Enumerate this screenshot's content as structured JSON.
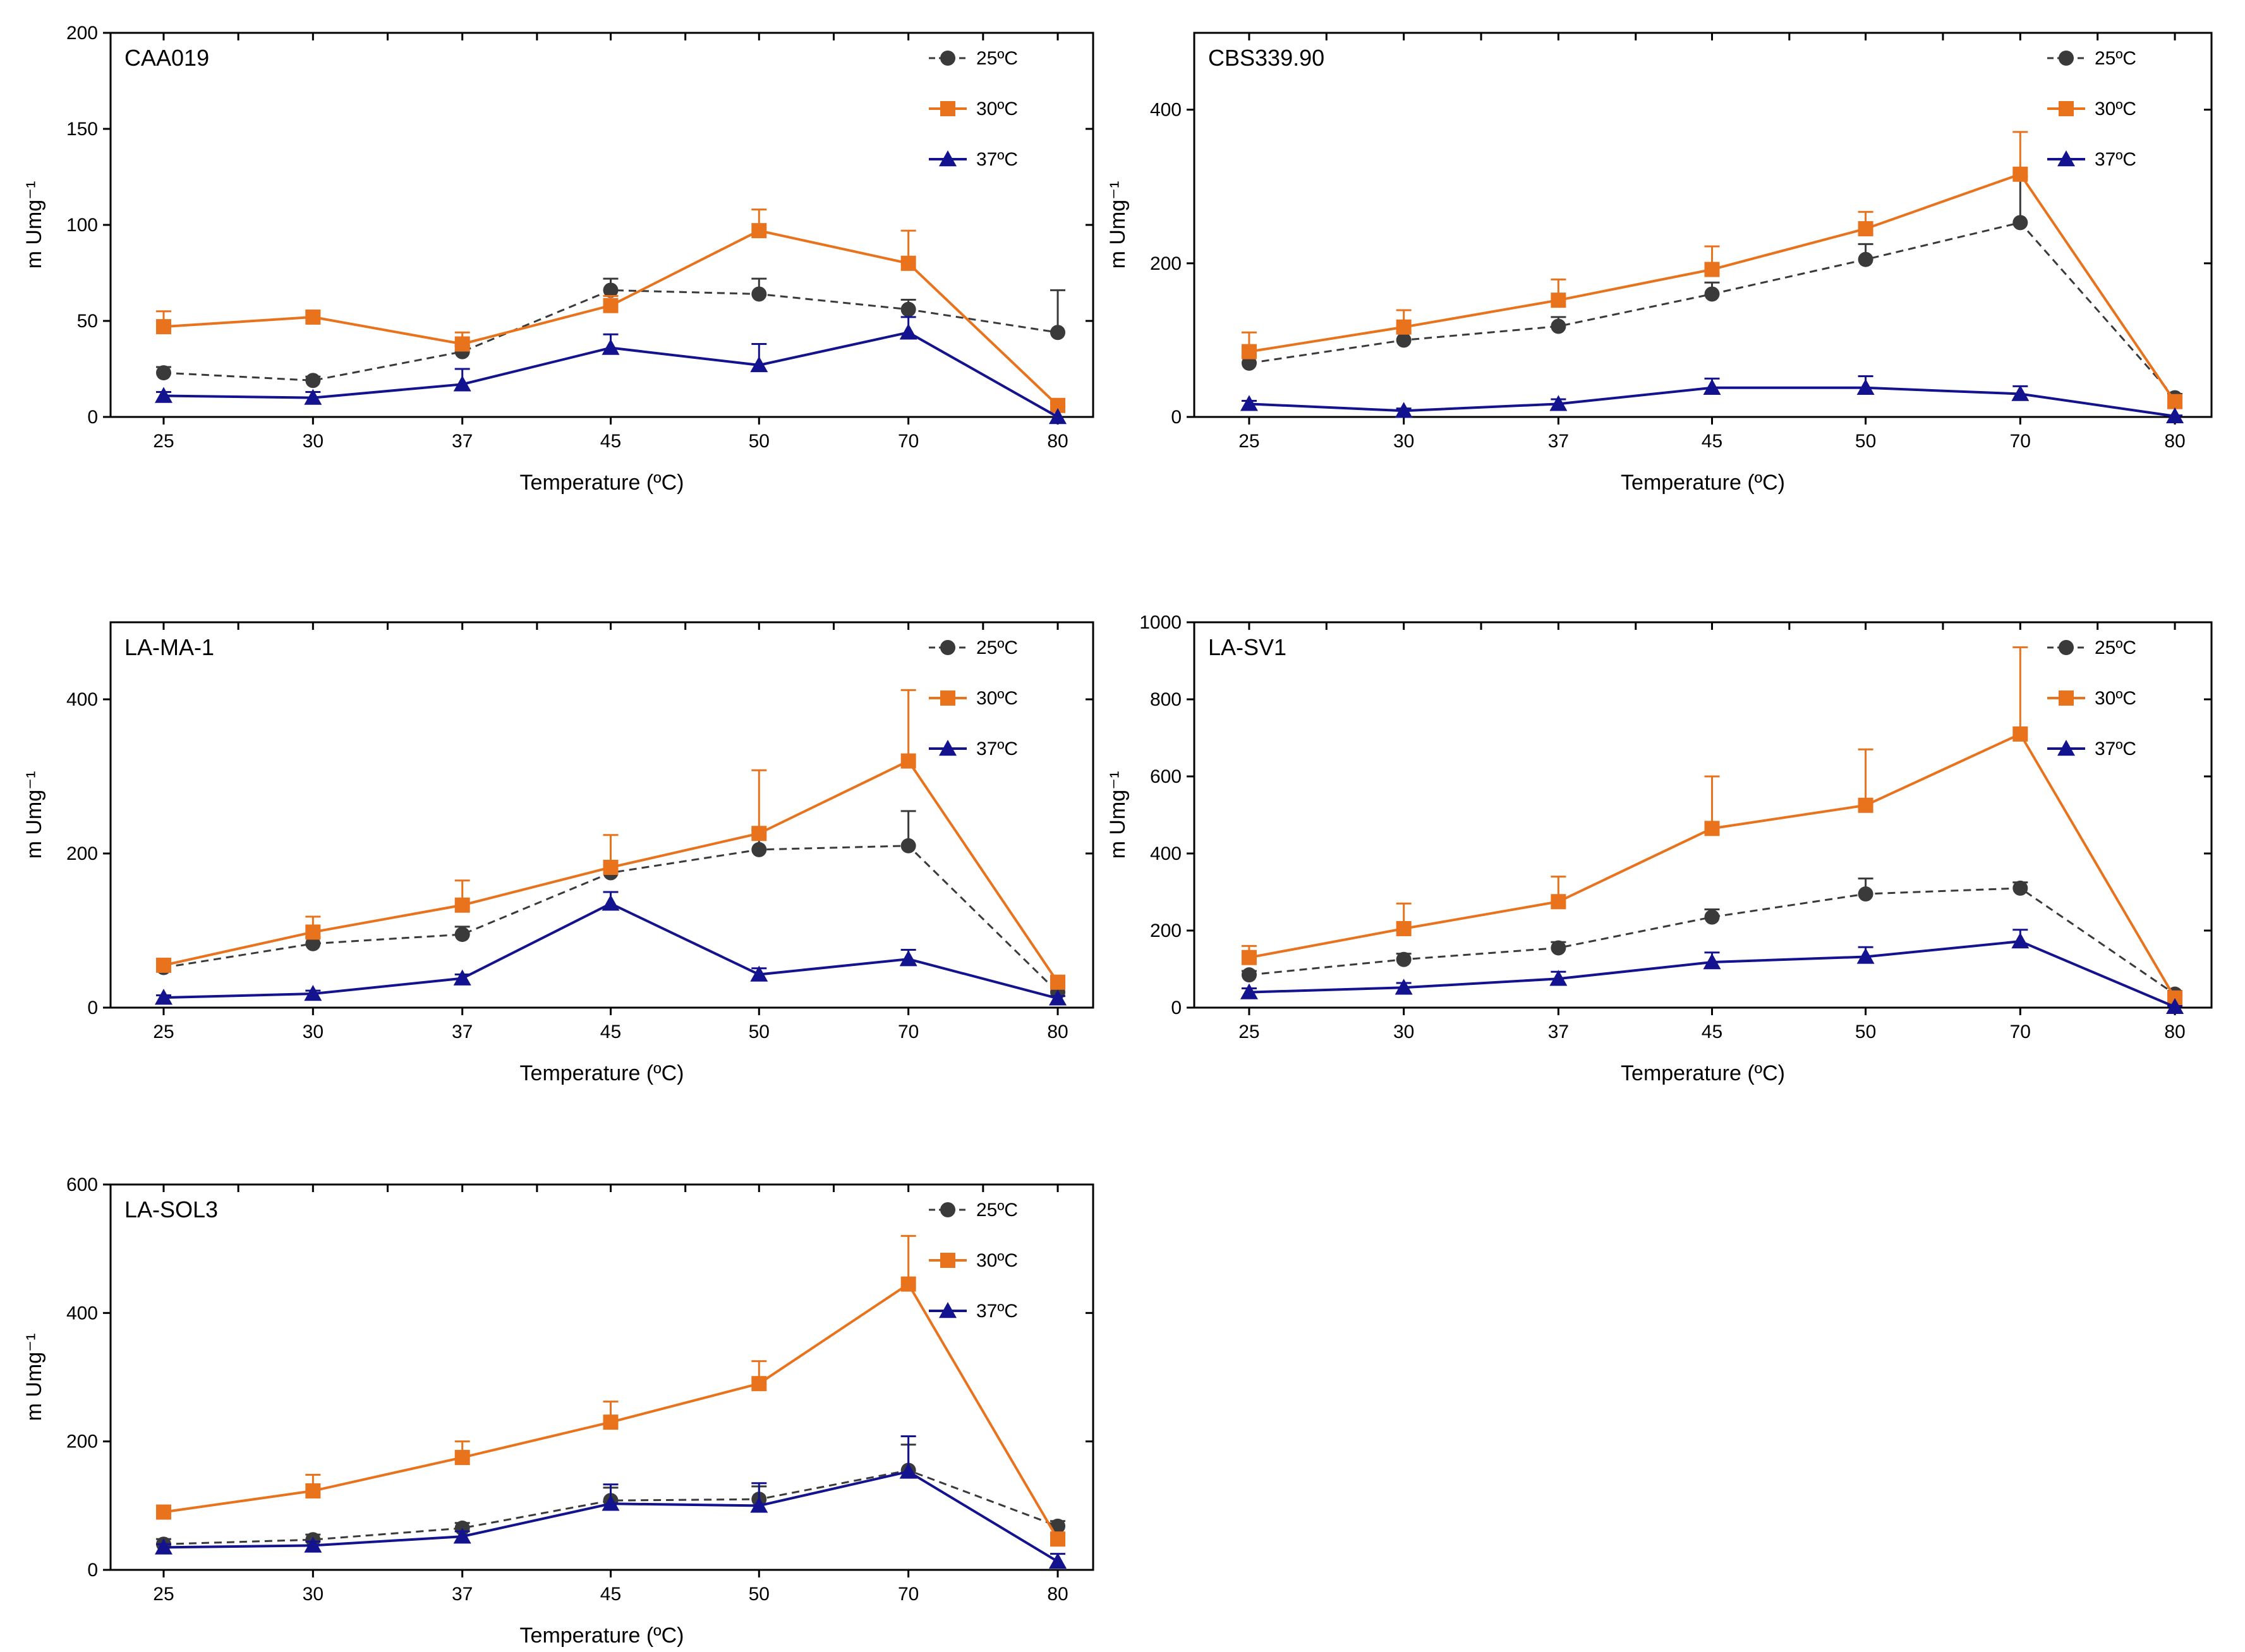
{
  "chart_data": [
    {
      "type": "line",
      "title": "CAA019",
      "xlabel": "Temperature (ºC)",
      "ylabel": "m Umg⁻¹",
      "categories": [
        "25",
        "30",
        "37",
        "45",
        "50",
        "70",
        "80"
      ],
      "yticks": [
        0,
        50,
        100,
        150,
        200
      ],
      "ylim": [
        0,
        200
      ],
      "grid": false,
      "legend": "top-right",
      "series": [
        {
          "name": "25ºC",
          "values": [
            23,
            19,
            34,
            66,
            64,
            56,
            44
          ],
          "errors": [
            3,
            2,
            3,
            6,
            8,
            5,
            22
          ]
        },
        {
          "name": "30ºC",
          "values": [
            47,
            52,
            38,
            58,
            97,
            80,
            6
          ],
          "errors": [
            8,
            3,
            6,
            5,
            11,
            17,
            2
          ]
        },
        {
          "name": "37ºC",
          "values": [
            11,
            10,
            17,
            36,
            27,
            44,
            0
          ],
          "errors": [
            2,
            3,
            8,
            7,
            11,
            8,
            0
          ]
        }
      ]
    },
    {
      "type": "line",
      "title": "CBS339.90",
      "xlabel": "Temperature (ºC)",
      "ylabel": "m Umg⁻¹",
      "categories": [
        "25",
        "30",
        "37",
        "45",
        "50",
        "70",
        "80"
      ],
      "yticks": [
        0,
        200,
        400
      ],
      "ylim": [
        0,
        500
      ],
      "grid": false,
      "legend": "top-right",
      "series": [
        {
          "name": "25ºC",
          "values": [
            70,
            100,
            118,
            160,
            205,
            253,
            25
          ],
          "errors": [
            10,
            10,
            12,
            15,
            20,
            60,
            5
          ]
        },
        {
          "name": "30ºC",
          "values": [
            85,
            117,
            152,
            192,
            245,
            316,
            20
          ],
          "errors": [
            25,
            22,
            27,
            30,
            22,
            55,
            5
          ]
        },
        {
          "name": "37ºC",
          "values": [
            17,
            8,
            17,
            38,
            38,
            30,
            1
          ],
          "errors": [
            4,
            3,
            6,
            12,
            15,
            10,
            1
          ]
        }
      ]
    },
    {
      "type": "line",
      "title": "LA-MA-1",
      "xlabel": "Temperature (ºC)",
      "ylabel": "m Umg⁻¹",
      "categories": [
        "25",
        "30",
        "37",
        "45",
        "50",
        "70",
        "80"
      ],
      "yticks": [
        0,
        200,
        400
      ],
      "ylim": [
        0,
        500
      ],
      "grid": false,
      "legend": "top-right",
      "series": [
        {
          "name": "25ºC",
          "values": [
            52,
            83,
            95,
            175,
            205,
            210,
            20
          ],
          "errors": [
            5,
            8,
            10,
            15,
            25,
            45,
            5
          ]
        },
        {
          "name": "30ºC",
          "values": [
            55,
            98,
            133,
            182,
            226,
            320,
            33
          ],
          "errors": [
            5,
            20,
            32,
            42,
            82,
            92,
            5
          ]
        },
        {
          "name": "37ºC",
          "values": [
            13,
            18,
            38,
            135,
            43,
            63,
            12
          ],
          "errors": [
            3,
            4,
            5,
            15,
            8,
            12,
            3
          ]
        }
      ]
    },
    {
      "type": "line",
      "title": "LA-SV1",
      "xlabel": "Temperature (ºC)",
      "ylabel": "m Umg⁻¹",
      "categories": [
        "25",
        "30",
        "37",
        "45",
        "50",
        "70",
        "80"
      ],
      "yticks": [
        0,
        200,
        400,
        600,
        800,
        1000
      ],
      "ylim": [
        0,
        1000
      ],
      "grid": false,
      "legend": "top-right",
      "series": [
        {
          "name": "25ºC",
          "values": [
            85,
            125,
            155,
            235,
            295,
            310,
            35
          ],
          "errors": [
            10,
            15,
            15,
            20,
            40,
            15,
            8
          ]
        },
        {
          "name": "30ºC",
          "values": [
            130,
            205,
            275,
            465,
            525,
            710,
            25
          ],
          "errors": [
            30,
            65,
            65,
            135,
            145,
            225,
            8
          ]
        },
        {
          "name": "37ºC",
          "values": [
            40,
            52,
            75,
            118,
            132,
            172,
            2
          ],
          "errors": [
            10,
            12,
            18,
            25,
            25,
            30,
            2
          ]
        }
      ]
    },
    {
      "type": "line",
      "title": "LA-SOL3",
      "xlabel": "Temperature (ºC)",
      "ylabel": "m Umg⁻¹",
      "categories": [
        "25",
        "30",
        "37",
        "45",
        "50",
        "70",
        "80"
      ],
      "yticks": [
        0,
        200,
        400,
        600
      ],
      "ylim": [
        0,
        600
      ],
      "grid": false,
      "legend": "top-right",
      "series": [
        {
          "name": "25ºC",
          "values": [
            40,
            47,
            65,
            108,
            110,
            155,
            68
          ],
          "errors": [
            8,
            8,
            8,
            20,
            20,
            40,
            8
          ]
        },
        {
          "name": "30ºC",
          "values": [
            90,
            123,
            175,
            230,
            290,
            445,
            48
          ],
          "errors": [
            8,
            25,
            25,
            32,
            35,
            75,
            8
          ]
        },
        {
          "name": "37ºC",
          "values": [
            35,
            38,
            52,
            103,
            100,
            153,
            13
          ],
          "errors": [
            5,
            6,
            8,
            30,
            35,
            55,
            12
          ]
        }
      ]
    }
  ],
  "style": {
    "colors": {
      "25ºC": "#3a3a3a",
      "30ºC": "#e8731c",
      "37ºC": "#13128f"
    },
    "markers": {
      "25ºC": "circle",
      "30ºC": "square",
      "37ºC": "triangle"
    },
    "dashes": {
      "25ºC": "dashed",
      "30ºC": "solid",
      "37ºC": "solid"
    }
  }
}
